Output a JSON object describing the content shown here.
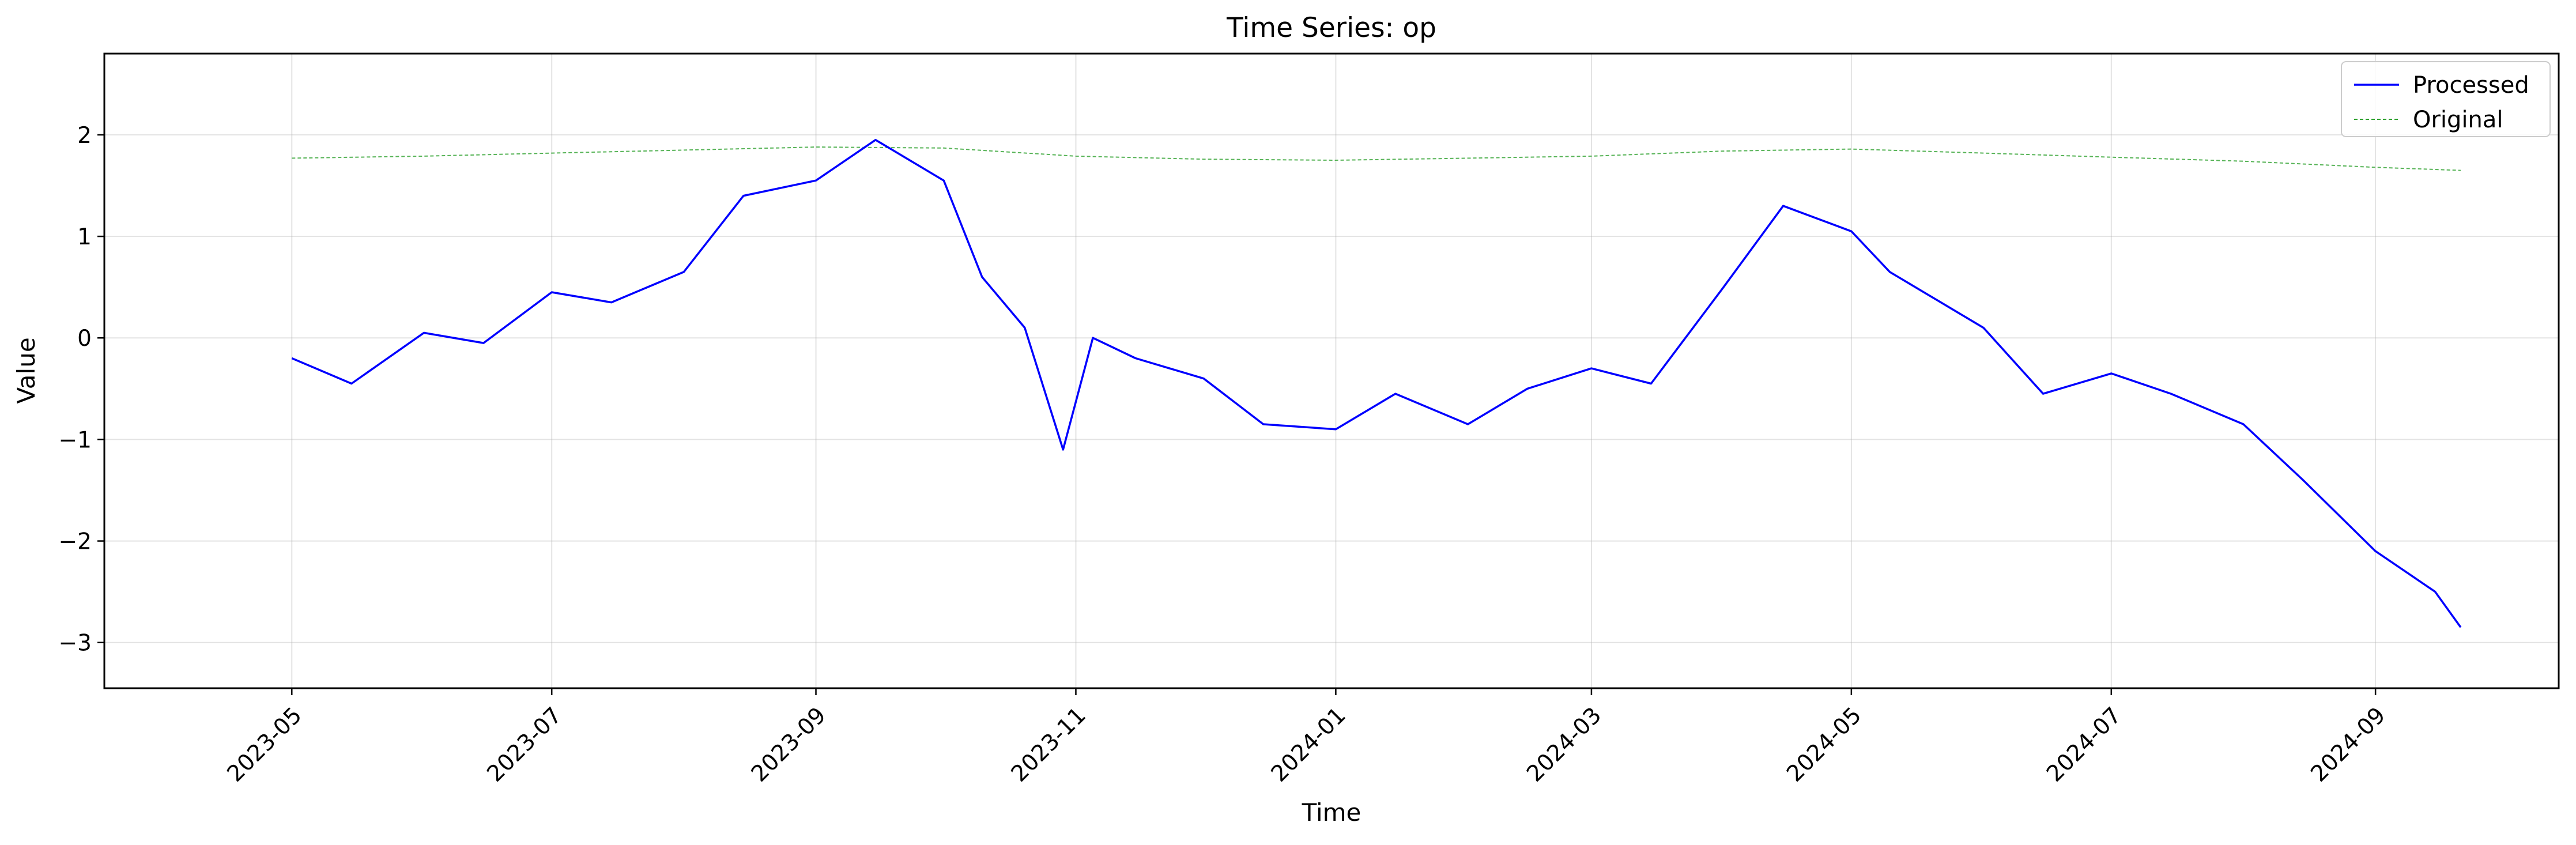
{
  "chart_data": {
    "type": "line",
    "title": "Time Series: op",
    "xlabel": "Time",
    "ylabel": "Value",
    "x_ticks": [
      "2023-05",
      "2023-07",
      "2023-09",
      "2023-11",
      "2024-01",
      "2024-03",
      "2024-05",
      "2024-07",
      "2024-09"
    ],
    "y_ticks": [
      "2",
      "1",
      "0",
      "−1",
      "−2",
      "−3"
    ],
    "xlim": [
      "2023-03-18",
      "2024-10-14"
    ],
    "ylim": [
      -3.45,
      2.8
    ],
    "grid": true,
    "legend_position": "top-right",
    "series": [
      {
        "name": "Processed",
        "color": "#0000ff",
        "style": "solid",
        "points": [
          [
            "2023-05-01",
            -0.2
          ],
          [
            "2023-05-15",
            -0.45
          ],
          [
            "2023-06-01",
            0.05
          ],
          [
            "2023-06-15",
            -0.05
          ],
          [
            "2023-07-01",
            0.45
          ],
          [
            "2023-07-15",
            0.35
          ],
          [
            "2023-08-01",
            0.65
          ],
          [
            "2023-08-15",
            1.4
          ],
          [
            "2023-09-01",
            1.55
          ],
          [
            "2023-09-15",
            1.95
          ],
          [
            "2023-10-01",
            1.55
          ],
          [
            "2023-10-10",
            0.6
          ],
          [
            "2023-10-20",
            0.1
          ],
          [
            "2023-10-29",
            -1.1
          ],
          [
            "2023-11-05",
            0.0
          ],
          [
            "2023-11-15",
            -0.2
          ],
          [
            "2023-12-01",
            -0.4
          ],
          [
            "2023-12-15",
            -0.85
          ],
          [
            "2024-01-01",
            -0.9
          ],
          [
            "2024-01-15",
            -0.55
          ],
          [
            "2024-02-01",
            -0.85
          ],
          [
            "2024-02-15",
            -0.5
          ],
          [
            "2024-03-01",
            -0.3
          ],
          [
            "2024-03-15",
            -0.45
          ],
          [
            "2024-04-01",
            0.5
          ],
          [
            "2024-04-15",
            1.3
          ],
          [
            "2024-05-01",
            1.05
          ],
          [
            "2024-05-10",
            0.65
          ],
          [
            "2024-05-20",
            0.4
          ],
          [
            "2024-06-01",
            0.1
          ],
          [
            "2024-06-15",
            -0.55
          ],
          [
            "2024-07-01",
            -0.35
          ],
          [
            "2024-07-15",
            -0.55
          ],
          [
            "2024-08-01",
            -0.85
          ],
          [
            "2024-08-15",
            -1.4
          ],
          [
            "2024-09-01",
            -2.1
          ],
          [
            "2024-09-15",
            -2.5
          ],
          [
            "2024-09-21",
            -2.85
          ]
        ]
      },
      {
        "name": "Original",
        "color": "#2ca02c",
        "style": "dashed",
        "points": [
          [
            "2023-05-01",
            1.77
          ],
          [
            "2023-06-01",
            1.79
          ],
          [
            "2023-07-01",
            1.82
          ],
          [
            "2023-08-01",
            1.85
          ],
          [
            "2023-09-01",
            1.88
          ],
          [
            "2023-10-01",
            1.87
          ],
          [
            "2023-11-01",
            1.79
          ],
          [
            "2023-12-01",
            1.76
          ],
          [
            "2024-01-01",
            1.75
          ],
          [
            "2024-02-01",
            1.77
          ],
          [
            "2024-03-01",
            1.79
          ],
          [
            "2024-04-01",
            1.84
          ],
          [
            "2024-05-01",
            1.86
          ],
          [
            "2024-06-01",
            1.82
          ],
          [
            "2024-07-01",
            1.78
          ],
          [
            "2024-08-01",
            1.74
          ],
          [
            "2024-09-01",
            1.68
          ],
          [
            "2024-09-21",
            1.65
          ]
        ]
      }
    ]
  }
}
